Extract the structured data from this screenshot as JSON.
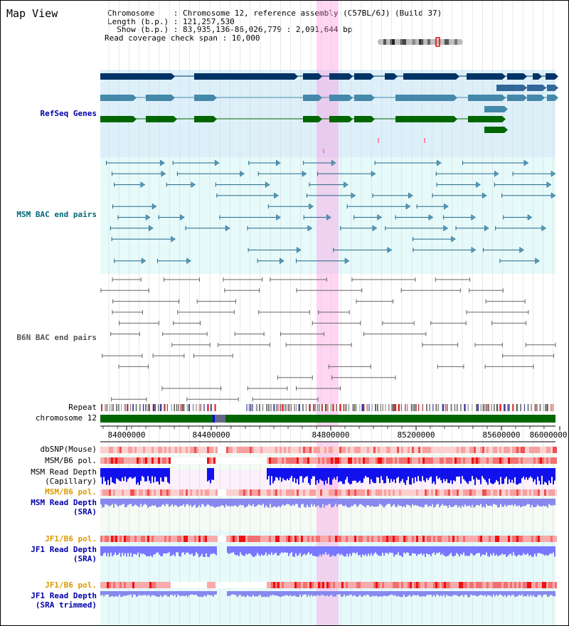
{
  "header": {
    "title": "Map View",
    "chromosome_line": "Chromosome    : Chromosome 12, reference assembly (C57BL/6J) (Build 37)",
    "length_line": "Length (b.p.) : 121,257,530",
    "show_line": "  Show (b.p.) : 83,935,136-86,026,779 : 2,091,644 bp",
    "span_line": "Read coverage check span : 10,000"
  },
  "tracks": {
    "refseq": "RefSeq Genes",
    "msm_bac": "MSM BAC end pairs",
    "b6n_bac": "B6N BAC end pairs",
    "repeat": "Repeat",
    "chromosome": "chromosome 12",
    "dbsnp": "dbSNP(Mouse)",
    "msm_b6_pol_1": "MSM/B6 pol.",
    "msm_read_depth_cap": "MSM Read Depth\n(Capillary)",
    "msm_b6_pol_2": "MSM/B6 pol.",
    "msm_read_depth_sra": "MSM Read Depth\n(SRA)",
    "jf1_b6_pol_1": "JF1/B6 pol.",
    "jf1_read_depth_sra": "JF1 Read Depth\n(SRA)",
    "jf1_b6_pol_2": "JF1/B6 pol.",
    "jf1_read_depth_trim": "JF1 Read Depth\n(SRA trimmed)"
  },
  "axis": {
    "ticks": [
      "84000000",
      "84400000",
      "84800000",
      "85200000",
      "85600000",
      "86000000"
    ]
  },
  "colors": {
    "refseq_label": "#0000aa",
    "msm_label": "#006677",
    "b6n_label": "#555555",
    "orange_label": "#dd9900",
    "blue_label": "#0000aa",
    "highlight": "#ff88dd"
  }
}
